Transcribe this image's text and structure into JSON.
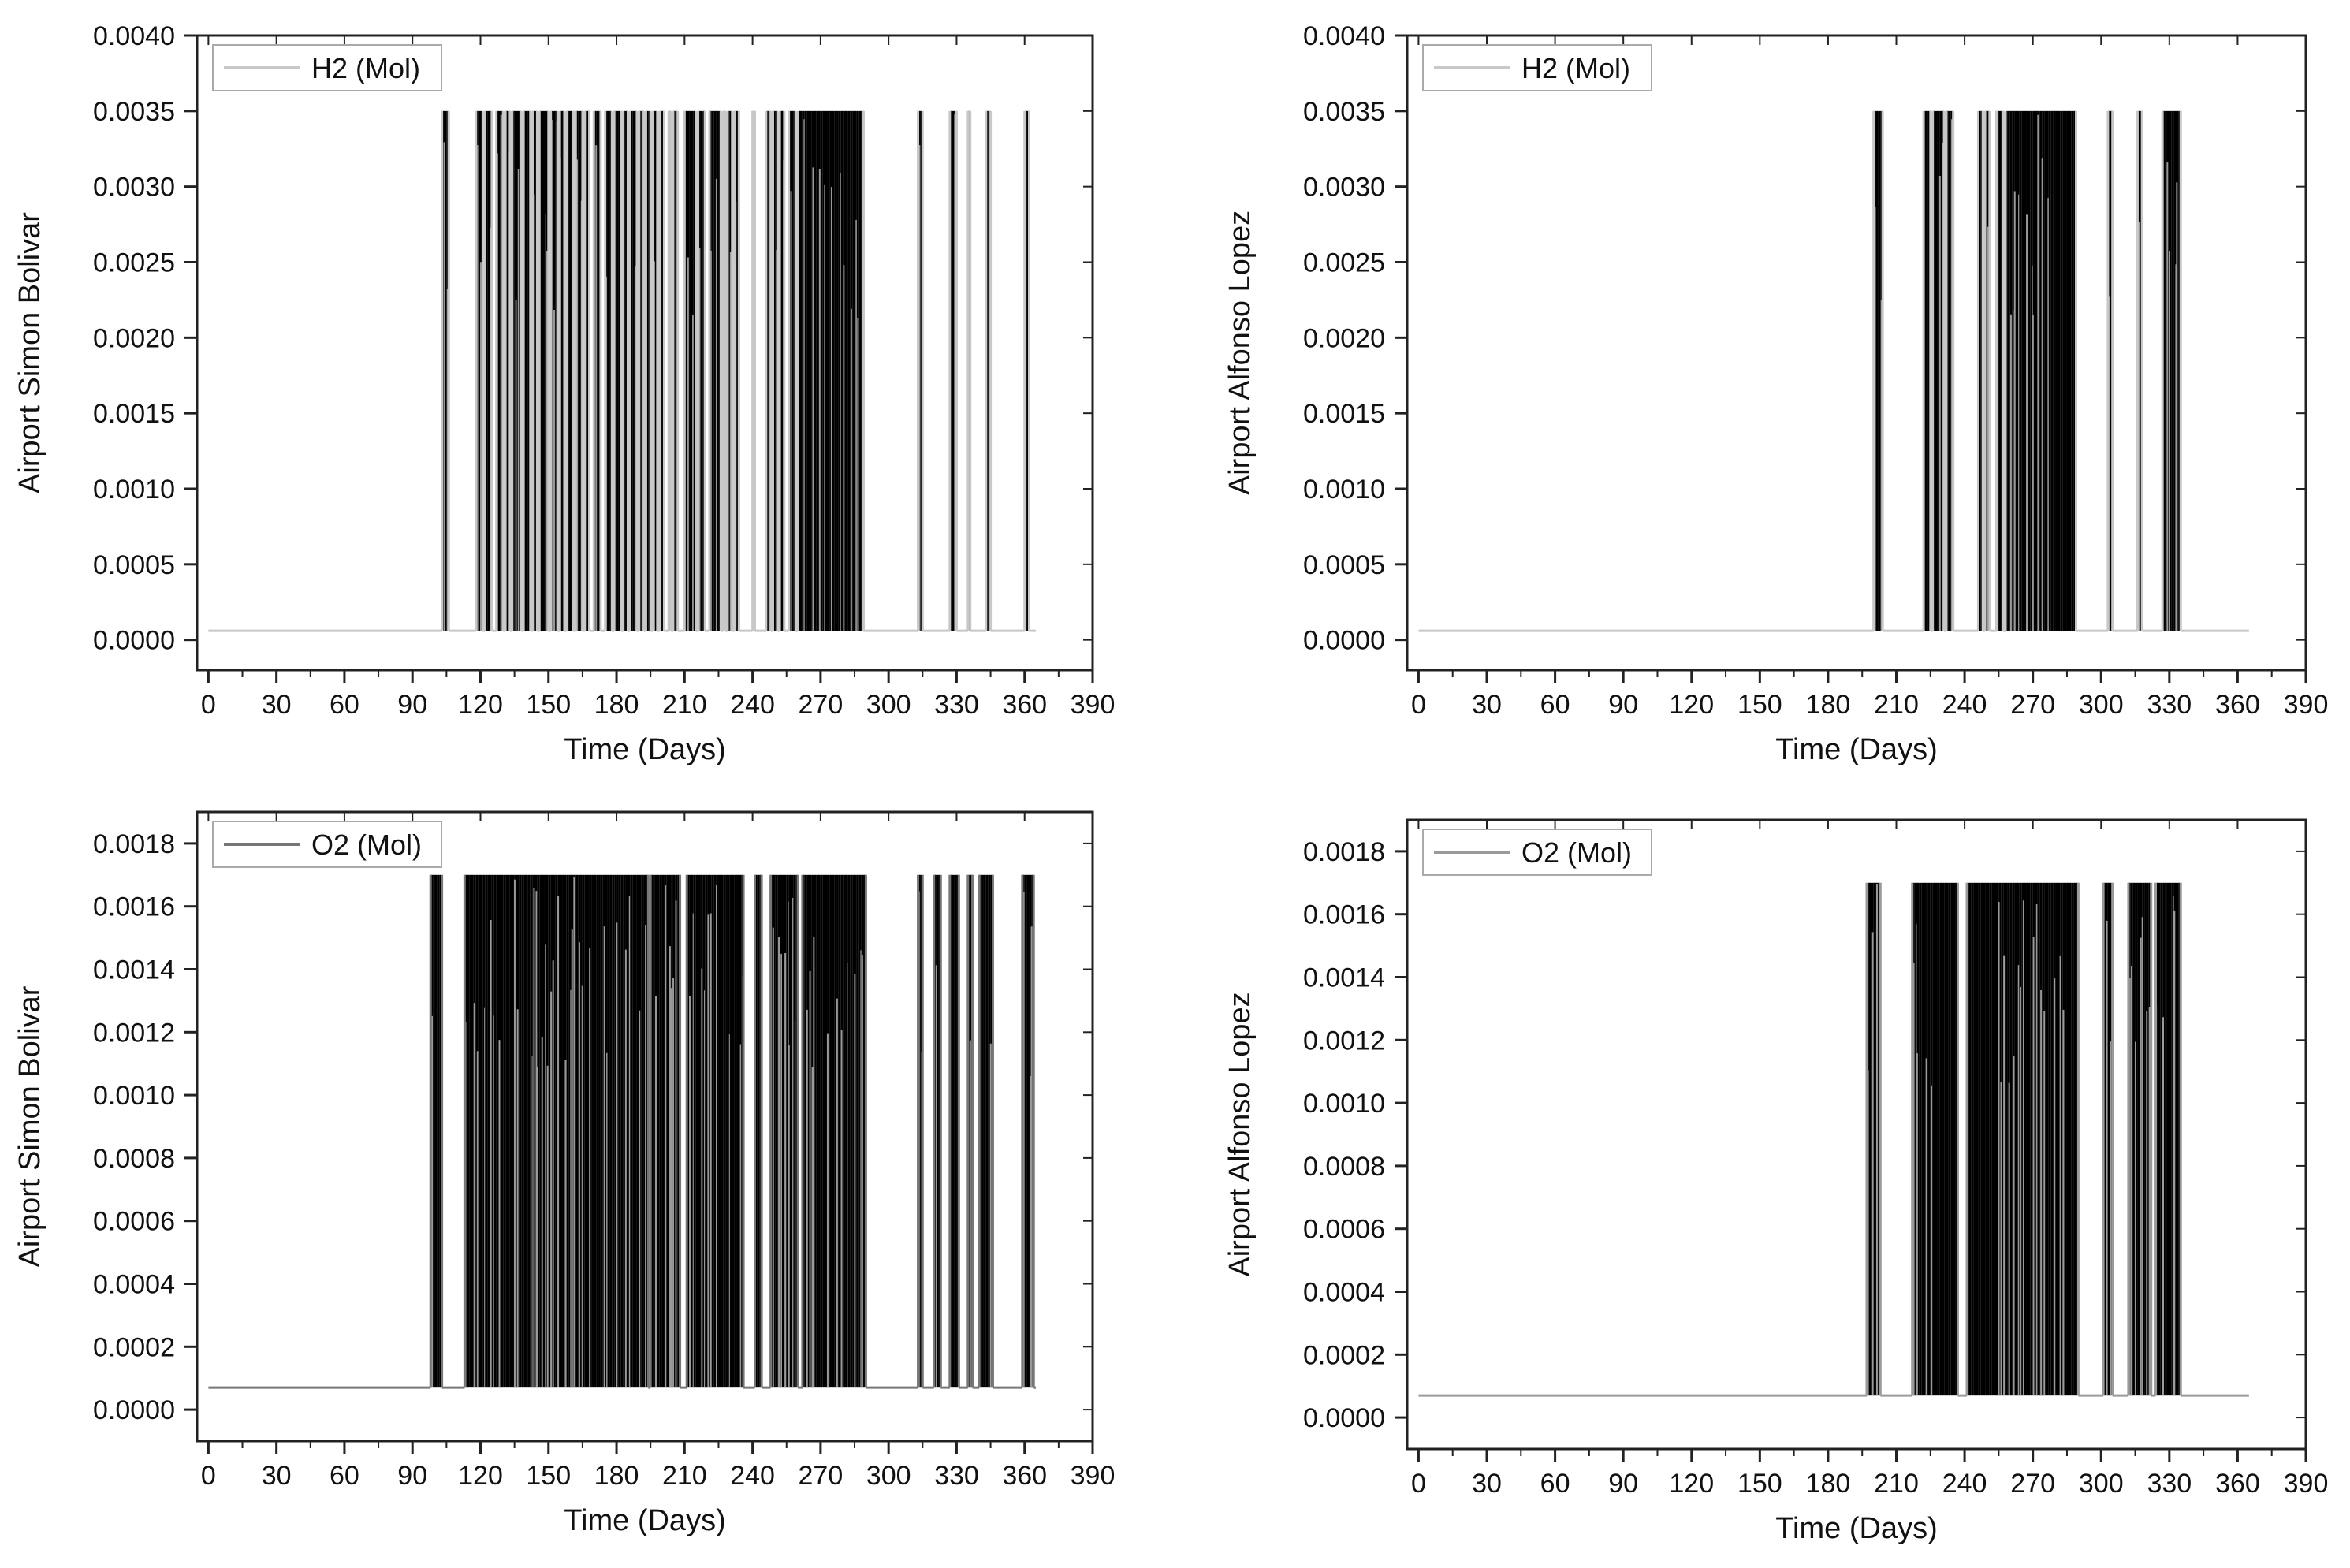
{
  "chart_data": [
    {
      "type": "line",
      "panel": "top-left",
      "xlabel": "Time (Days)",
      "ylabel": "Airport Simon Bolivar",
      "xlim": [
        -5,
        390
      ],
      "ylim": [
        -0.0002,
        0.004
      ],
      "xticks": [
        0,
        30,
        60,
        90,
        120,
        150,
        180,
        210,
        240,
        270,
        300,
        330,
        360,
        390
      ],
      "yticks": [
        "0.0000",
        "0.0005",
        "0.0010",
        "0.0015",
        "0.0020",
        "0.0025",
        "0.0030",
        "0.0035",
        "0.0040"
      ],
      "legend_position": "top-left",
      "grid": false,
      "series": [
        {
          "name": "H2 (Mol)",
          "color": "#c8c8c8",
          "baseline": 6e-05,
          "peak": 0.0035,
          "x_range": [
            0,
            365
          ],
          "active_days": [
            103,
            104,
            105,
            118,
            119,
            120,
            122,
            123,
            124,
            127,
            128,
            129,
            131,
            132,
            134,
            135,
            136,
            137,
            139,
            140,
            141,
            143,
            144,
            146,
            147,
            148,
            149,
            151,
            152,
            153,
            155,
            156,
            158,
            159,
            160,
            162,
            163,
            164,
            166,
            167,
            170,
            171,
            172,
            175,
            176,
            177,
            179,
            180,
            181,
            183,
            184,
            186,
            187,
            188,
            190,
            191,
            193,
            194,
            196,
            197,
            199,
            200,
            203,
            205,
            206,
            210,
            211,
            212,
            213,
            214,
            216,
            217,
            218,
            221,
            222,
            223,
            224,
            225,
            227,
            229,
            230,
            232,
            233,
            240,
            246,
            247,
            249,
            250,
            252,
            253,
            256,
            257,
            258,
            260,
            261,
            262,
            263,
            264,
            265,
            266,
            267,
            268,
            269,
            270,
            271,
            272,
            273,
            274,
            275,
            276,
            277,
            278,
            279,
            280,
            281,
            282,
            283,
            284,
            285,
            286,
            287,
            288,
            313,
            314,
            327,
            328,
            329,
            335,
            343,
            344,
            360,
            361
          ]
        }
      ]
    },
    {
      "type": "line",
      "panel": "top-right",
      "xlabel": "Time (Days)",
      "ylabel": "Airport Alfonso Lopez",
      "xlim": [
        -5,
        390
      ],
      "ylim": [
        -0.0002,
        0.004
      ],
      "xticks": [
        0,
        30,
        60,
        90,
        120,
        150,
        180,
        210,
        240,
        270,
        300,
        330,
        360,
        390
      ],
      "yticks": [
        "0.0000",
        "0.0005",
        "0.0010",
        "0.0015",
        "0.0020",
        "0.0025",
        "0.0030",
        "0.0035",
        "0.0040"
      ],
      "legend_position": "top-left",
      "grid": false,
      "series": [
        {
          "name": "H2 (Mol)",
          "color": "#c8c8c8",
          "baseline": 6e-05,
          "peak": 0.0035,
          "x_range": [
            0,
            365
          ],
          "active_days": [
            200,
            201,
            202,
            203,
            222,
            223,
            224,
            226,
            227,
            228,
            229,
            230,
            232,
            233,
            234,
            246,
            247,
            249,
            250,
            254,
            255,
            256,
            258,
            259,
            260,
            261,
            262,
            263,
            264,
            265,
            266,
            267,
            268,
            269,
            270,
            271,
            272,
            273,
            274,
            275,
            276,
            277,
            278,
            279,
            280,
            281,
            282,
            283,
            284,
            285,
            286,
            287,
            288,
            303,
            304,
            316,
            317,
            327,
            328,
            329,
            330,
            331,
            332,
            333,
            334
          ]
        }
      ]
    },
    {
      "type": "line",
      "panel": "bottom-left",
      "xlabel": "Time (Days)",
      "ylabel": "Airport Simon Bolivar",
      "xlim": [
        -5,
        390
      ],
      "ylim": [
        -0.0001,
        0.0019
      ],
      "xticks": [
        0,
        30,
        60,
        90,
        120,
        150,
        180,
        210,
        240,
        270,
        300,
        330,
        360,
        390
      ],
      "yticks": [
        "0.0000",
        "0.0002",
        "0.0004",
        "0.0006",
        "0.0008",
        "0.0010",
        "0.0012",
        "0.0014",
        "0.0016",
        "0.0018"
      ],
      "legend_position": "top-left",
      "grid": false,
      "series": [
        {
          "name": "O2 (Mol)",
          "color": "#777777",
          "baseline": 7e-05,
          "peak": 0.0017,
          "x_range": [
            0,
            365
          ],
          "active_days": [
            98,
            99,
            100,
            101,
            102,
            113,
            114,
            115,
            116,
            117,
            118,
            119,
            120,
            121,
            122,
            123,
            124,
            125,
            126,
            127,
            128,
            129,
            130,
            131,
            132,
            133,
            134,
            135,
            136,
            137,
            138,
            139,
            140,
            141,
            142,
            143,
            144,
            145,
            146,
            147,
            148,
            149,
            150,
            151,
            152,
            153,
            154,
            155,
            156,
            157,
            158,
            159,
            160,
            161,
            162,
            163,
            164,
            165,
            166,
            167,
            168,
            169,
            170,
            171,
            172,
            173,
            174,
            175,
            176,
            177,
            178,
            179,
            180,
            181,
            182,
            183,
            184,
            185,
            186,
            187,
            188,
            189,
            190,
            191,
            192,
            193,
            195,
            196,
            197,
            198,
            199,
            200,
            201,
            202,
            203,
            204,
            205,
            206,
            207,
            211,
            212,
            213,
            214,
            215,
            216,
            217,
            218,
            219,
            220,
            221,
            222,
            223,
            224,
            225,
            226,
            227,
            228,
            229,
            230,
            231,
            232,
            233,
            234,
            235,
            241,
            242,
            243,
            248,
            249,
            250,
            251,
            252,
            253,
            254,
            255,
            256,
            257,
            258,
            259,
            262,
            263,
            264,
            265,
            266,
            267,
            268,
            269,
            270,
            271,
            272,
            273,
            274,
            275,
            276,
            277,
            278,
            279,
            280,
            281,
            282,
            283,
            284,
            285,
            286,
            287,
            288,
            289,
            313,
            314,
            320,
            321,
            322,
            327,
            328,
            329,
            330,
            335,
            336,
            340,
            341,
            342,
            343,
            344,
            345,
            359,
            360,
            361,
            362,
            363
          ]
        }
      ]
    },
    {
      "type": "line",
      "panel": "bottom-right",
      "xlabel": "Time (Days)",
      "ylabel": "Airport Alfonso Lopez",
      "xlim": [
        -5,
        390
      ],
      "ylim": [
        -0.0001,
        0.0019
      ],
      "xticks": [
        0,
        30,
        60,
        90,
        120,
        150,
        180,
        210,
        240,
        270,
        300,
        330,
        360,
        390
      ],
      "yticks": [
        "0.0000",
        "0.0002",
        "0.0004",
        "0.0006",
        "0.0008",
        "0.0010",
        "0.0012",
        "0.0014",
        "0.0016",
        "0.0018"
      ],
      "legend_position": "top-left",
      "grid": false,
      "series": [
        {
          "name": "O2 (Mol)",
          "color": "#9a9a9a",
          "baseline": 7e-05,
          "peak": 0.0017,
          "x_range": [
            0,
            365
          ],
          "active_days": [
            197,
            198,
            199,
            200,
            201,
            202,
            217,
            218,
            219,
            220,
            221,
            222,
            223,
            224,
            225,
            226,
            227,
            228,
            229,
            230,
            231,
            232,
            233,
            234,
            235,
            236,
            241,
            242,
            243,
            244,
            245,
            246,
            247,
            248,
            249,
            250,
            251,
            252,
            253,
            254,
            255,
            256,
            257,
            258,
            259,
            260,
            261,
            262,
            263,
            264,
            265,
            266,
            267,
            268,
            269,
            270,
            271,
            272,
            273,
            274,
            275,
            276,
            277,
            278,
            279,
            280,
            281,
            282,
            283,
            284,
            285,
            286,
            287,
            288,
            289,
            301,
            302,
            303,
            304,
            312,
            313,
            314,
            315,
            316,
            317,
            318,
            319,
            320,
            321,
            324,
            325,
            326,
            327,
            328,
            329,
            330,
            331,
            332,
            333,
            334
          ]
        }
      ]
    }
  ]
}
